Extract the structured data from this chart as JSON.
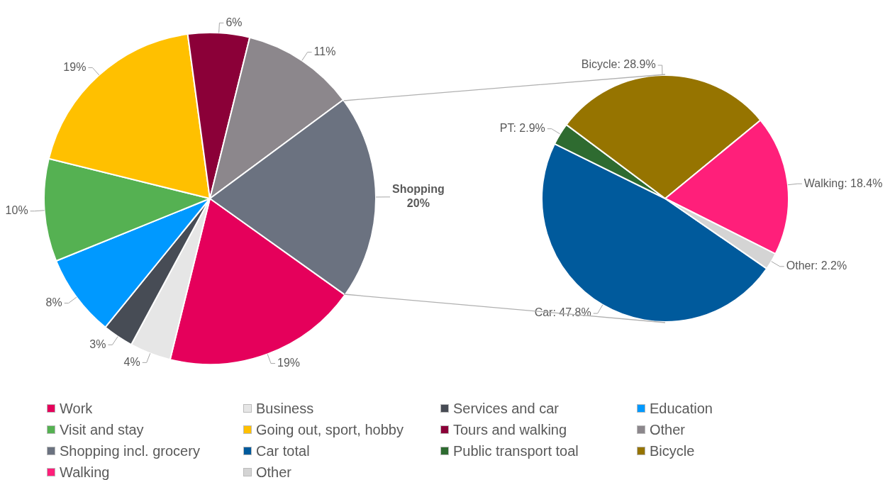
{
  "chart_data": [
    {
      "type": "pie",
      "categories": [
        "Work",
        "Business",
        "Services and car",
        "Education",
        "Visit and stay",
        "Going out, sport, hobby",
        "Tours and walking",
        "Other",
        "Shopping incl. grocery"
      ],
      "values": [
        19,
        4,
        3,
        8,
        10,
        19,
        6,
        11,
        20
      ],
      "colors": [
        "#e5005b",
        "#e6e6e6",
        "#474c55",
        "#0099ff",
        "#55b152",
        "#ffc000",
        "#8b0038",
        "#8c878c",
        "#6b7280"
      ],
      "value_labels": [
        "19%",
        "4%",
        "3%",
        "8%",
        "10%",
        "19%",
        "6%",
        "11%",
        "Shopping\n20%"
      ],
      "legend": "bottom"
    },
    {
      "type": "pie",
      "categories": [
        "Car total",
        "Public transport toal",
        "Bicycle",
        "Walking",
        "Other"
      ],
      "values": [
        47.8,
        2.9,
        28.9,
        18.4,
        2.2
      ],
      "colors": [
        "#005a9c",
        "#2e6b30",
        "#967400",
        "#ff1f7a",
        "#d4d4d4"
      ],
      "value_labels": [
        "Car: 47.8%",
        "PT: 2.9%",
        "Bicycle: 28.9%",
        "Walking: 18.4%",
        "Other: 2.2%"
      ],
      "legend": "bottom"
    }
  ]
}
